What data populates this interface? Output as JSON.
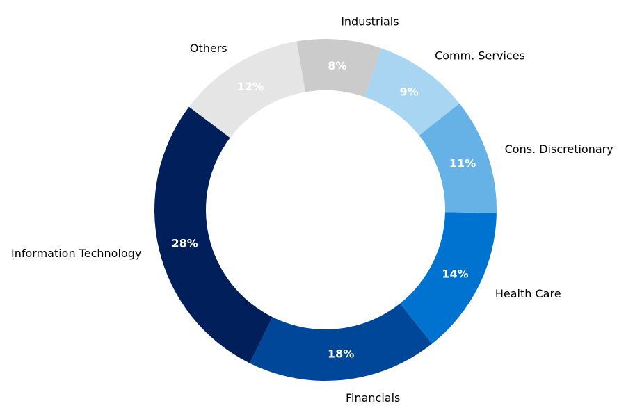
{
  "chart_data": {
    "type": "pie",
    "variant": "donut",
    "categories": [
      "Information Technology",
      "Financials",
      "Health Care",
      "Cons. Discretionary",
      "Comm. Services",
      "Industrials",
      "Others"
    ],
    "values": [
      28,
      18,
      14,
      11,
      9,
      8,
      12
    ],
    "value_labels": [
      "28%",
      "18%",
      "14%",
      "11%",
      "9%",
      "8%",
      "12%"
    ],
    "colors": [
      "#001f5b",
      "#00479a",
      "#0072cf",
      "#66b2e6",
      "#a8d6f2",
      "#cbcbcb",
      "#e5e5e5"
    ],
    "legend": "none"
  }
}
